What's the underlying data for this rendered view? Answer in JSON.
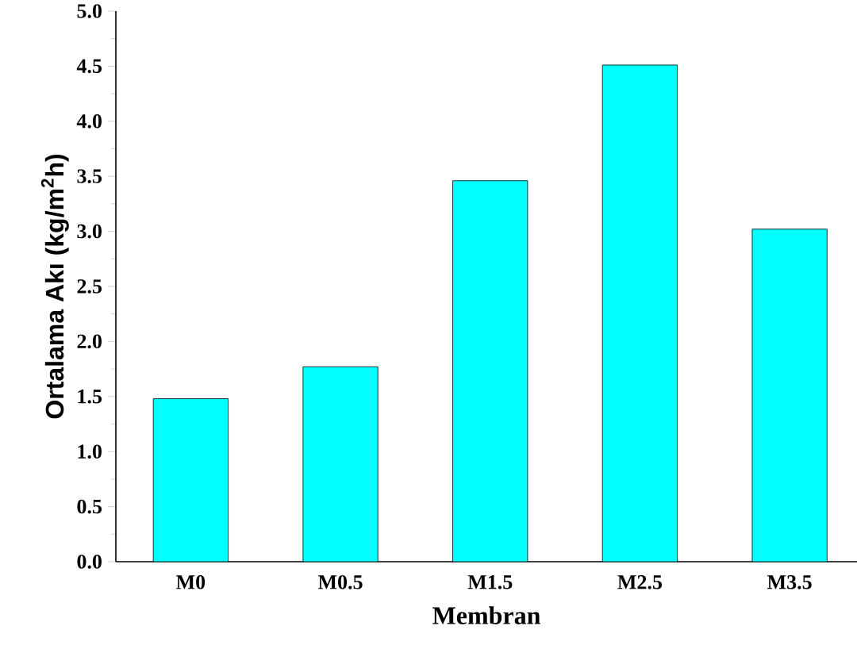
{
  "chart_data": {
    "type": "bar",
    "xlabel": "Membran",
    "ylabel": "Ortalama Akı (kg/m$^{2}$h)",
    "categories": [
      "M0",
      "M0.5",
      "M1.5",
      "M2.5",
      "M3.5"
    ],
    "values": [
      1.48,
      1.77,
      3.46,
      4.51,
      3.02
    ],
    "color": "#00ffff",
    "ylim": [
      0,
      5
    ],
    "yticks": [
      {
        "value": 0,
        "label": "0.0"
      },
      {
        "value": 0.5,
        "label": "0.5"
      },
      {
        "value": 1,
        "label": "1.0"
      },
      {
        "value": 1.5,
        "label": "1.5"
      },
      {
        "value": 2,
        "label": "2.0"
      },
      {
        "value": 2.5,
        "label": "2.5"
      },
      {
        "value": 3,
        "label": "3.0"
      },
      {
        "value": 3.5,
        "label": "3.5"
      },
      {
        "value": 4,
        "label": "4.0"
      },
      {
        "value": 4.5,
        "label": "4.5"
      },
      {
        "value": 5,
        "label": "5.0"
      }
    ]
  }
}
